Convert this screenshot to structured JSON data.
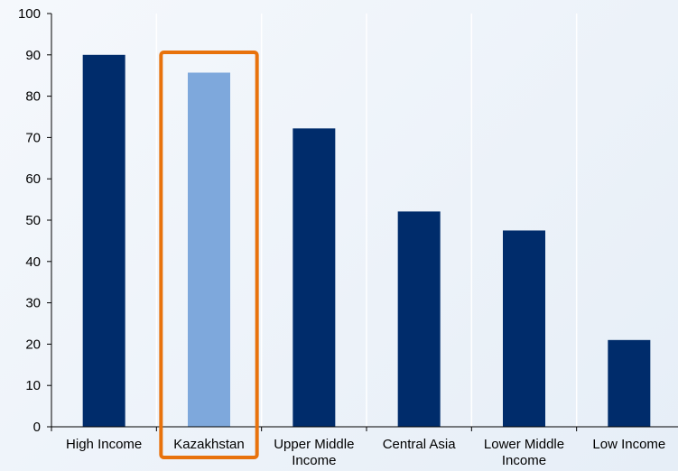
{
  "chart_data": {
    "type": "bar",
    "title": "",
    "xlabel": "",
    "ylabel": "",
    "ylim": [
      0,
      100
    ],
    "yticks": [
      0,
      10,
      20,
      30,
      40,
      50,
      60,
      70,
      80,
      90,
      100
    ],
    "categories": [
      [
        "High Income"
      ],
      [
        "Kazakhstan"
      ],
      [
        "Upper Middle",
        "Income"
      ],
      [
        "Central Asia"
      ],
      [
        "Lower Middle",
        "Income"
      ],
      [
        "Low Income"
      ]
    ],
    "values": [
      90,
      85.7,
      72.2,
      52.1,
      47.5,
      21
    ],
    "highlight_index": 1,
    "colors": {
      "bar": "#002c6b",
      "highlight_bar": "#7ea8dc",
      "highlight_box": "#e8720c",
      "axis": "#000000",
      "gridline": "#ffffff"
    },
    "grid": "vertical separators",
    "legend": "none"
  }
}
